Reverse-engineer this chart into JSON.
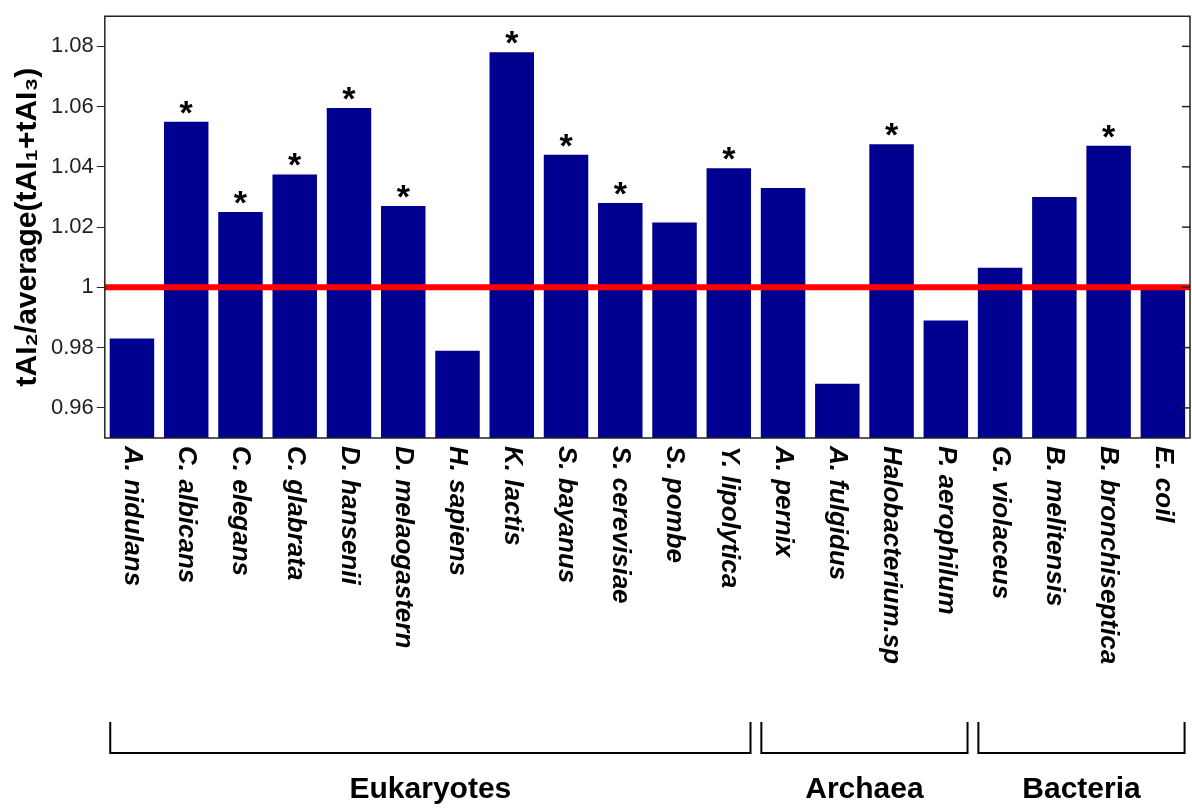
{
  "chart_data": {
    "type": "bar",
    "ylabel": "tAI₂/average(tAI₁+tAI₃)",
    "categories": [
      "A. nidulans",
      "C. albicans",
      "C. elegans",
      "C. glabrata",
      "D. hansenii",
      "D. melaogastern",
      "H. sapiens",
      "K. lactis",
      "S. bayanus",
      "S. cerevisiae",
      "S. pombe",
      "Y. lipolytica",
      "A. pernix",
      "A. fulgidus",
      "Halobacterium.sp",
      "P. aerophilum",
      "G. violaceus",
      "B. melitensis",
      "B. bronchiseptica",
      "E. coil"
    ],
    "values": [
      0.983,
      1.055,
      1.025,
      1.0375,
      1.0595,
      1.027,
      0.979,
      1.078,
      1.044,
      1.028,
      1.0215,
      1.0395,
      1.033,
      0.968,
      1.0475,
      0.989,
      1.0065,
      1.03,
      1.047,
      1.0
    ],
    "color": "#000090",
    "ylim": [
      0.95,
      1.09
    ],
    "yticks": [
      0.96,
      0.98,
      1,
      1.02,
      1.04,
      1.06,
      1.08
    ],
    "grid": false,
    "legend": false,
    "ref_lines": [
      {
        "axis": "y",
        "value": 1,
        "color": "#ff0000"
      }
    ],
    "annotations": [
      "Eukaryotes",
      "Archaea",
      "Bacteria",
      {
        "text": "*",
        "x": "C. albicans",
        "y": 1.055
      },
      {
        "text": "*",
        "x": "C. elegans",
        "y": 1.025
      },
      {
        "text": "*",
        "x": "C. glabrata",
        "y": 1.0375
      },
      {
        "text": "*",
        "x": "D. hansenii",
        "y": 1.0595
      },
      {
        "text": "*",
        "x": "D. melaogastern",
        "y": 1.027
      },
      {
        "text": "*",
        "x": "K. lactis",
        "y": 1.078
      },
      {
        "text": "*",
        "x": "S. bayanus",
        "y": 1.044
      },
      {
        "text": "*",
        "x": "S. cerevisiae",
        "y": 1.028
      },
      {
        "text": "*",
        "x": "Y. lipolytica",
        "y": 1.0395
      },
      {
        "text": "*",
        "x": "Halobacterium.sp",
        "y": 1.0475
      },
      {
        "text": "*",
        "x": "B. bronchiseptica",
        "y": 1.047
      }
    ]
  }
}
